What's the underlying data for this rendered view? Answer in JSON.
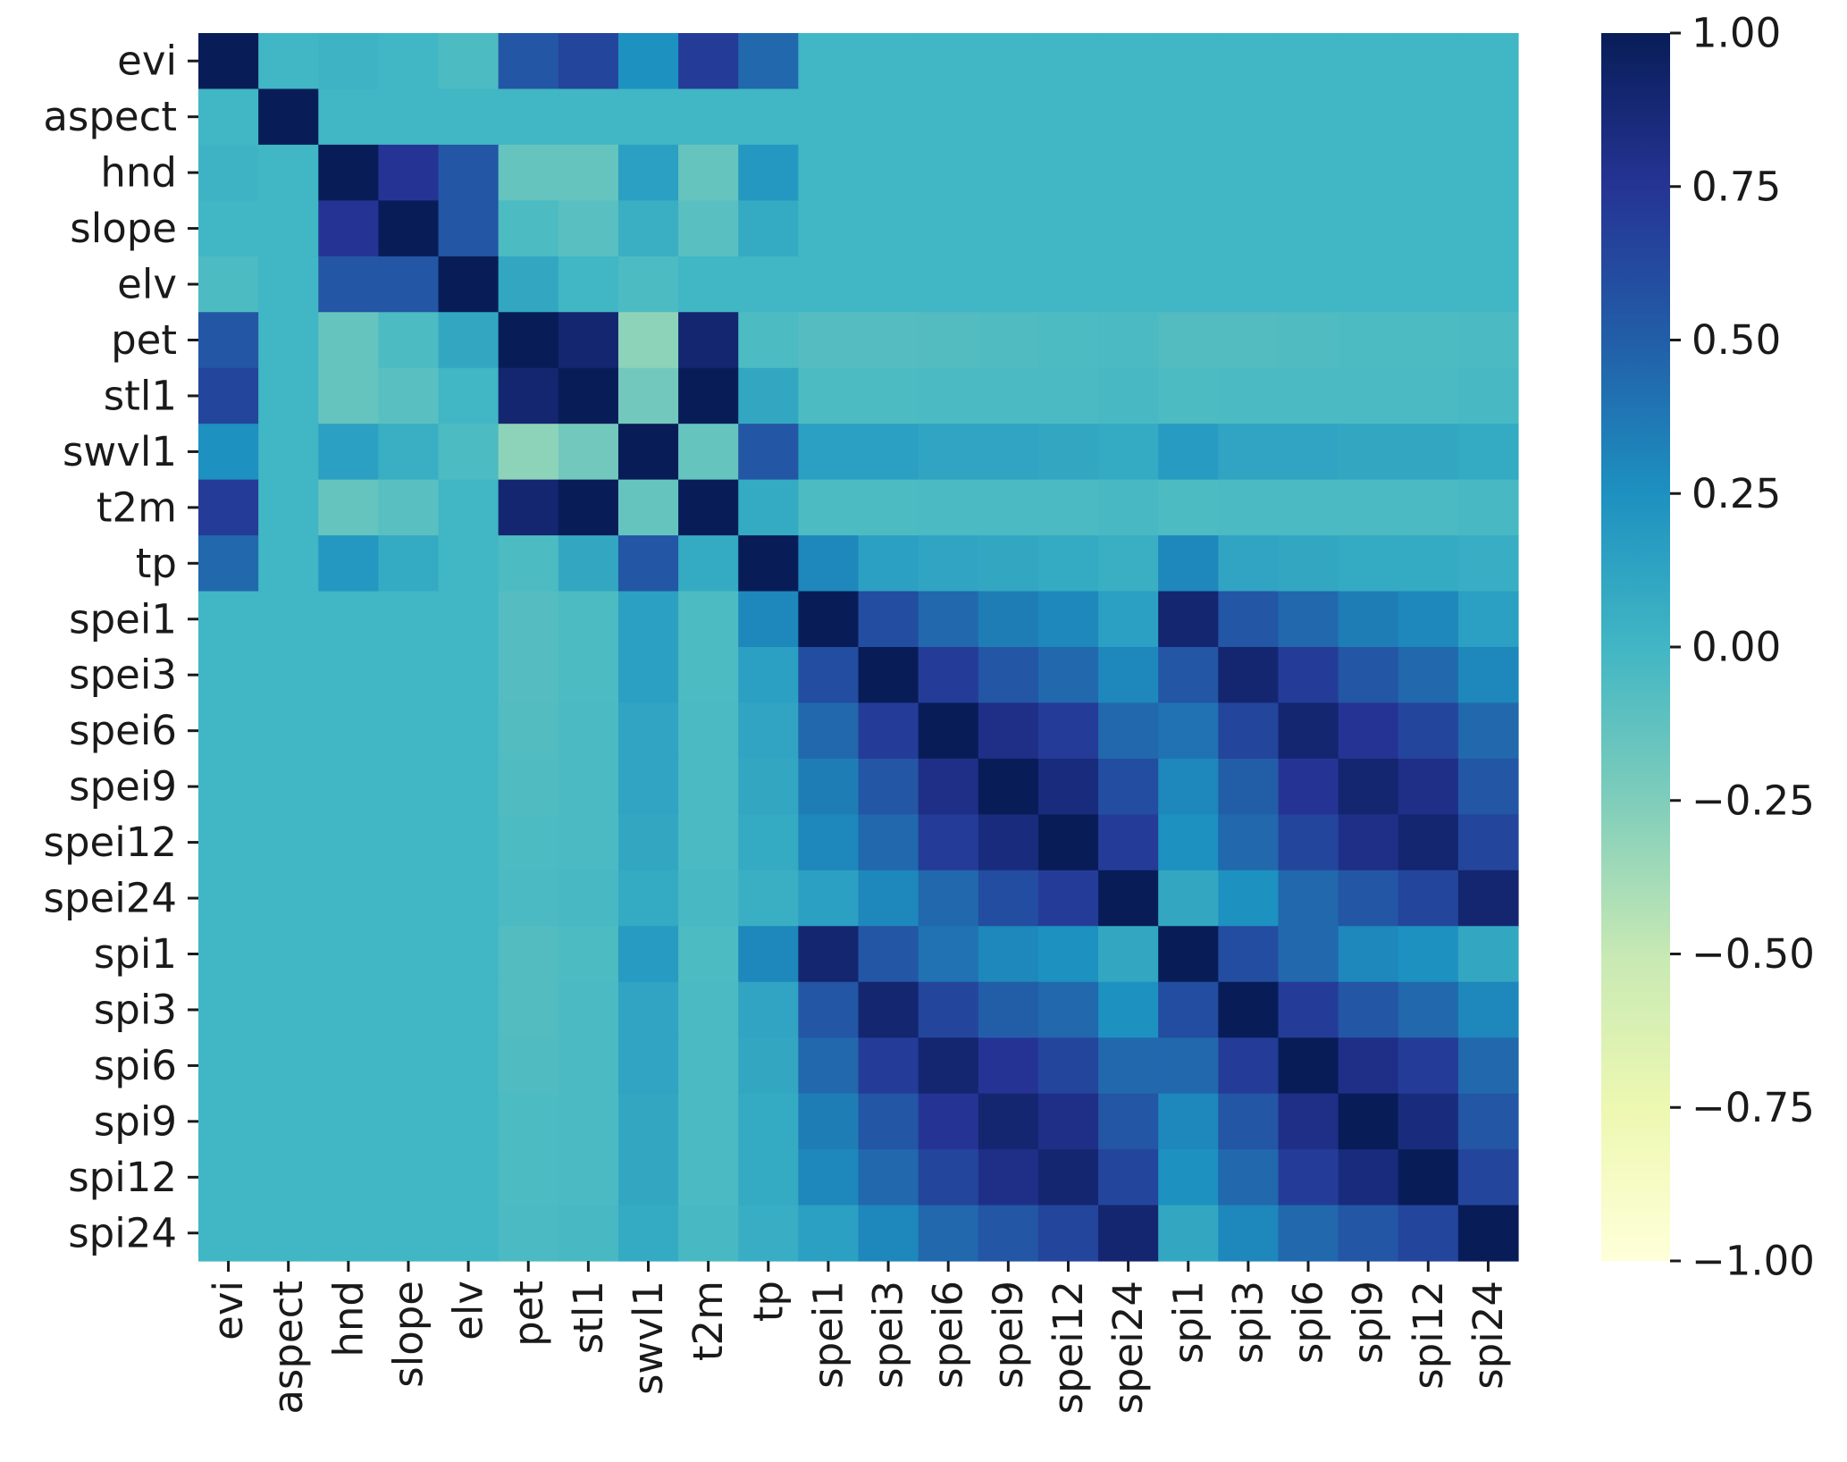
{
  "chart_data": {
    "type": "heatmap",
    "title": "",
    "xlabel": "",
    "ylabel": "",
    "variables": [
      "evi",
      "aspect",
      "hnd",
      "slope",
      "elv",
      "pet",
      "stl1",
      "swvl1",
      "t2m",
      "tp",
      "spei1",
      "spei3",
      "spei6",
      "spei9",
      "spei12",
      "spei24",
      "spi1",
      "spi3",
      "spi6",
      "spi9",
      "spi12",
      "spi24"
    ],
    "values": [
      [
        1.0,
        0.0,
        0.02,
        0.0,
        -0.05,
        0.55,
        0.65,
        0.25,
        0.7,
        0.45,
        0.0,
        0.0,
        0.0,
        0.0,
        0.0,
        0.0,
        0.0,
        0.0,
        0.0,
        0.0,
        0.0,
        0.0
      ],
      [
        0.0,
        1.0,
        0.0,
        0.0,
        0.0,
        0.0,
        0.0,
        0.0,
        0.0,
        0.0,
        0.0,
        0.0,
        0.0,
        0.0,
        0.0,
        0.0,
        0.0,
        0.0,
        0.0,
        0.0,
        0.0,
        0.0
      ],
      [
        0.02,
        0.0,
        1.0,
        0.75,
        0.55,
        -0.15,
        -0.15,
        0.15,
        -0.15,
        0.2,
        0.0,
        0.0,
        0.0,
        0.0,
        0.0,
        0.0,
        0.0,
        0.0,
        0.0,
        0.0,
        0.0,
        0.0
      ],
      [
        0.0,
        0.0,
        0.75,
        1.0,
        0.55,
        -0.05,
        -0.1,
        0.05,
        -0.1,
        0.08,
        0.0,
        0.0,
        0.0,
        0.0,
        0.0,
        0.0,
        0.0,
        0.0,
        0.0,
        0.0,
        0.0,
        0.0
      ],
      [
        -0.05,
        0.0,
        0.55,
        0.55,
        1.0,
        0.1,
        0.0,
        -0.05,
        0.0,
        0.0,
        0.0,
        0.0,
        0.0,
        0.0,
        0.0,
        0.0,
        0.0,
        0.0,
        0.0,
        0.0,
        0.0,
        0.0
      ],
      [
        0.55,
        0.0,
        -0.15,
        -0.05,
        0.1,
        1.0,
        0.9,
        -0.3,
        0.9,
        -0.05,
        -0.08,
        -0.08,
        -0.07,
        -0.06,
        -0.05,
        -0.04,
        -0.07,
        -0.07,
        -0.06,
        -0.05,
        -0.05,
        -0.04
      ],
      [
        0.65,
        0.0,
        -0.15,
        -0.1,
        0.0,
        0.9,
        1.0,
        -0.2,
        1.0,
        0.1,
        -0.05,
        -0.05,
        -0.04,
        -0.04,
        -0.04,
        -0.03,
        -0.05,
        -0.04,
        -0.04,
        -0.04,
        -0.04,
        -0.03
      ],
      [
        0.25,
        0.0,
        0.15,
        0.05,
        -0.05,
        -0.3,
        -0.2,
        1.0,
        -0.15,
        0.55,
        0.15,
        0.15,
        0.12,
        0.12,
        0.1,
        0.08,
        0.18,
        0.12,
        0.12,
        0.1,
        0.1,
        0.08
      ],
      [
        0.7,
        0.0,
        -0.15,
        -0.1,
        0.0,
        0.9,
        1.0,
        -0.15,
        1.0,
        0.08,
        -0.05,
        -0.05,
        -0.04,
        -0.04,
        -0.04,
        -0.03,
        -0.05,
        -0.04,
        -0.04,
        -0.04,
        -0.04,
        -0.03
      ],
      [
        0.45,
        0.0,
        0.2,
        0.08,
        0.0,
        -0.05,
        0.1,
        0.55,
        0.08,
        1.0,
        0.3,
        0.15,
        0.12,
        0.1,
        0.08,
        0.05,
        0.3,
        0.12,
        0.1,
        0.08,
        0.08,
        0.06
      ],
      [
        0.0,
        0.0,
        0.0,
        0.0,
        0.0,
        -0.08,
        -0.05,
        0.15,
        -0.05,
        0.3,
        1.0,
        0.6,
        0.45,
        0.35,
        0.3,
        0.15,
        0.9,
        0.55,
        0.45,
        0.35,
        0.3,
        0.15
      ],
      [
        0.0,
        0.0,
        0.0,
        0.0,
        0.0,
        -0.08,
        -0.05,
        0.15,
        -0.05,
        0.15,
        0.6,
        1.0,
        0.7,
        0.55,
        0.45,
        0.3,
        0.55,
        0.9,
        0.7,
        0.55,
        0.45,
        0.3
      ],
      [
        0.0,
        0.0,
        0.0,
        0.0,
        0.0,
        -0.07,
        -0.04,
        0.12,
        -0.04,
        0.12,
        0.45,
        0.7,
        1.0,
        0.8,
        0.7,
        0.45,
        0.4,
        0.65,
        0.9,
        0.75,
        0.65,
        0.45
      ],
      [
        0.0,
        0.0,
        0.0,
        0.0,
        0.0,
        -0.06,
        -0.04,
        0.12,
        -0.04,
        0.1,
        0.35,
        0.55,
        0.8,
        1.0,
        0.85,
        0.6,
        0.3,
        0.5,
        0.75,
        0.9,
        0.8,
        0.55
      ],
      [
        0.0,
        0.0,
        0.0,
        0.0,
        0.0,
        -0.05,
        -0.04,
        0.1,
        -0.04,
        0.08,
        0.3,
        0.45,
        0.7,
        0.85,
        1.0,
        0.7,
        0.25,
        0.45,
        0.65,
        0.8,
        0.9,
        0.65
      ],
      [
        0.0,
        0.0,
        0.0,
        0.0,
        0.0,
        -0.04,
        -0.03,
        0.08,
        -0.03,
        0.05,
        0.15,
        0.3,
        0.45,
        0.6,
        0.7,
        1.0,
        0.1,
        0.25,
        0.45,
        0.55,
        0.65,
        0.9
      ],
      [
        0.0,
        0.0,
        0.0,
        0.0,
        0.0,
        -0.07,
        -0.05,
        0.18,
        -0.05,
        0.3,
        0.9,
        0.55,
        0.4,
        0.3,
        0.25,
        0.1,
        1.0,
        0.6,
        0.45,
        0.3,
        0.25,
        0.1
      ],
      [
        0.0,
        0.0,
        0.0,
        0.0,
        0.0,
        -0.07,
        -0.04,
        0.12,
        -0.04,
        0.12,
        0.55,
        0.9,
        0.65,
        0.5,
        0.45,
        0.25,
        0.6,
        1.0,
        0.7,
        0.55,
        0.45,
        0.3
      ],
      [
        0.0,
        0.0,
        0.0,
        0.0,
        0.0,
        -0.06,
        -0.04,
        0.12,
        -0.04,
        0.1,
        0.45,
        0.7,
        0.9,
        0.75,
        0.65,
        0.45,
        0.45,
        0.7,
        1.0,
        0.8,
        0.7,
        0.45
      ],
      [
        0.0,
        0.0,
        0.0,
        0.0,
        0.0,
        -0.05,
        -0.04,
        0.1,
        -0.04,
        0.08,
        0.35,
        0.55,
        0.75,
        0.9,
        0.8,
        0.55,
        0.3,
        0.55,
        0.8,
        1.0,
        0.85,
        0.55
      ],
      [
        0.0,
        0.0,
        0.0,
        0.0,
        0.0,
        -0.05,
        -0.04,
        0.1,
        -0.04,
        0.08,
        0.3,
        0.45,
        0.65,
        0.8,
        0.9,
        0.65,
        0.25,
        0.45,
        0.7,
        0.85,
        1.0,
        0.65
      ],
      [
        0.0,
        0.0,
        0.0,
        0.0,
        0.0,
        -0.04,
        -0.03,
        0.08,
        -0.03,
        0.06,
        0.15,
        0.3,
        0.45,
        0.55,
        0.65,
        0.9,
        0.1,
        0.3,
        0.45,
        0.55,
        0.65,
        1.0
      ]
    ],
    "colorbar": {
      "min": -1.0,
      "max": 1.0,
      "ticks": [
        1.0,
        0.75,
        0.5,
        0.25,
        0.0,
        -0.25,
        -0.5,
        -0.75,
        -1.0
      ],
      "tick_labels": [
        "1.00",
        "0.75",
        "0.50",
        "0.25",
        "0.00",
        "−0.25",
        "−0.50",
        "−0.75",
        "−1.00"
      ],
      "colormap": "YlGnBu",
      "stops": [
        "#ffffd9",
        "#edf8b1",
        "#c7e9b4",
        "#7fcdbb",
        "#41b6c4",
        "#1d91c0",
        "#225ea8",
        "#253494",
        "#081d58"
      ]
    }
  }
}
